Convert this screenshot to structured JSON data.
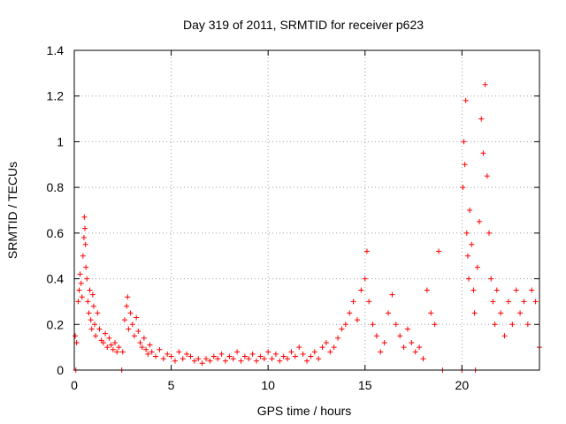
{
  "chart_data": {
    "type": "scatter",
    "title": "Day 319 of 2011, SRMTID for receiver p623",
    "xlabel": "GPS time / hours",
    "ylabel": "SRMTID / TECUs",
    "xlim": [
      0,
      24
    ],
    "ylim": [
      0,
      1.4
    ],
    "x_ticks": [
      0,
      5,
      10,
      15,
      20
    ],
    "y_ticks": [
      0,
      0.2,
      0.4,
      0.6,
      0.8,
      1,
      1.2,
      1.4
    ],
    "x_tick_labels": [
      "0",
      "5",
      "10",
      "15",
      "20"
    ],
    "y_tick_labels": [
      "0",
      "0.2",
      "0.4",
      "0.6",
      "0.8",
      "1",
      "1.2",
      "1.4"
    ],
    "grid": true,
    "marker": "+",
    "colors": {
      "points": "#ff0000",
      "grid": "#a0a0a0",
      "axes": "#000000"
    },
    "series": [
      {
        "name": "SRMTID",
        "points": [
          [
            0.05,
            0.15
          ],
          [
            0.08,
            0.0
          ],
          [
            0.12,
            0.12
          ],
          [
            0.2,
            0.3
          ],
          [
            0.25,
            0.35
          ],
          [
            0.3,
            0.42
          ],
          [
            0.35,
            0.38
          ],
          [
            0.4,
            0.32
          ],
          [
            0.45,
            0.5
          ],
          [
            0.5,
            0.58
          ],
          [
            0.52,
            0.67
          ],
          [
            0.55,
            0.62
          ],
          [
            0.58,
            0.55
          ],
          [
            0.6,
            0.45
          ],
          [
            0.65,
            0.4
          ],
          [
            0.7,
            0.3
          ],
          [
            0.75,
            0.25
          ],
          [
            0.8,
            0.35
          ],
          [
            0.85,
            0.22
          ],
          [
            0.9,
            0.18
          ],
          [
            0.95,
            0.33
          ],
          [
            1.0,
            0.28
          ],
          [
            1.05,
            0.2
          ],
          [
            1.1,
            0.15
          ],
          [
            1.2,
            0.25
          ],
          [
            1.3,
            0.18
          ],
          [
            1.4,
            0.13
          ],
          [
            1.5,
            0.12
          ],
          [
            1.6,
            0.16
          ],
          [
            1.7,
            0.1
          ],
          [
            1.8,
            0.14
          ],
          [
            1.9,
            0.11
          ],
          [
            2.0,
            0.09
          ],
          [
            2.1,
            0.12
          ],
          [
            2.2,
            0.08
          ],
          [
            2.3,
            0.1
          ],
          [
            2.45,
            0.0
          ],
          [
            2.5,
            0.08
          ],
          [
            2.6,
            0.22
          ],
          [
            2.7,
            0.28
          ],
          [
            2.75,
            0.32
          ],
          [
            2.8,
            0.18
          ],
          [
            2.9,
            0.25
          ],
          [
            3.0,
            0.2
          ],
          [
            3.1,
            0.15
          ],
          [
            3.2,
            0.23
          ],
          [
            3.3,
            0.17
          ],
          [
            3.4,
            0.12
          ],
          [
            3.5,
            0.1
          ],
          [
            3.6,
            0.14
          ],
          [
            3.7,
            0.09
          ],
          [
            3.8,
            0.07
          ],
          [
            3.9,
            0.11
          ],
          [
            4.0,
            0.08
          ],
          [
            4.2,
            0.06
          ],
          [
            4.4,
            0.09
          ],
          [
            4.6,
            0.05
          ],
          [
            4.8,
            0.07
          ],
          [
            5.0,
            0.06
          ],
          [
            5.2,
            0.04
          ],
          [
            5.4,
            0.08
          ],
          [
            5.6,
            0.05
          ],
          [
            5.8,
            0.07
          ],
          [
            6.0,
            0.06
          ],
          [
            6.2,
            0.04
          ],
          [
            6.4,
            0.05
          ],
          [
            6.6,
            0.03
          ],
          [
            6.8,
            0.05
          ],
          [
            7.0,
            0.04
          ],
          [
            7.2,
            0.06
          ],
          [
            7.4,
            0.05
          ],
          [
            7.6,
            0.07
          ],
          [
            7.8,
            0.04
          ],
          [
            8.0,
            0.06
          ],
          [
            8.2,
            0.05
          ],
          [
            8.4,
            0.08
          ],
          [
            8.6,
            0.04
          ],
          [
            8.8,
            0.06
          ],
          [
            9.0,
            0.05
          ],
          [
            9.2,
            0.07
          ],
          [
            9.4,
            0.04
          ],
          [
            9.6,
            0.06
          ],
          [
            9.8,
            0.05
          ],
          [
            10.0,
            0.08
          ],
          [
            10.2,
            0.05
          ],
          [
            10.4,
            0.07
          ],
          [
            10.6,
            0.04
          ],
          [
            10.8,
            0.06
          ],
          [
            11.0,
            0.05
          ],
          [
            11.2,
            0.08
          ],
          [
            11.4,
            0.06
          ],
          [
            11.6,
            0.1
          ],
          [
            11.8,
            0.07
          ],
          [
            12.0,
            0.04
          ],
          [
            12.2,
            0.06
          ],
          [
            12.4,
            0.08
          ],
          [
            12.6,
            0.05
          ],
          [
            12.8,
            0.1
          ],
          [
            13.0,
            0.12
          ],
          [
            13.2,
            0.08
          ],
          [
            13.4,
            0.1
          ],
          [
            13.6,
            0.14
          ],
          [
            13.8,
            0.18
          ],
          [
            14.0,
            0.2
          ],
          [
            14.2,
            0.25
          ],
          [
            14.4,
            0.3
          ],
          [
            14.6,
            0.22
          ],
          [
            14.8,
            0.35
          ],
          [
            15.0,
            0.4
          ],
          [
            15.1,
            0.52
          ],
          [
            15.2,
            0.3
          ],
          [
            15.4,
            0.2
          ],
          [
            15.6,
            0.15
          ],
          [
            15.8,
            0.08
          ],
          [
            16.0,
            0.12
          ],
          [
            16.2,
            0.25
          ],
          [
            16.4,
            0.33
          ],
          [
            16.6,
            0.2
          ],
          [
            16.8,
            0.15
          ],
          [
            17.0,
            0.1
          ],
          [
            17.2,
            0.18
          ],
          [
            17.4,
            0.12
          ],
          [
            17.6,
            0.08
          ],
          [
            17.8,
            0.1
          ],
          [
            18.0,
            0.05
          ],
          [
            18.2,
            0.35
          ],
          [
            18.4,
            0.25
          ],
          [
            18.6,
            0.2
          ],
          [
            18.8,
            0.52
          ],
          [
            19.0,
            0.0
          ],
          [
            20.0,
            0.0
          ],
          [
            20.05,
            0.8
          ],
          [
            20.1,
            1.0
          ],
          [
            20.15,
            0.9
          ],
          [
            20.2,
            1.18
          ],
          [
            20.25,
            0.6
          ],
          [
            20.3,
            0.5
          ],
          [
            20.35,
            0.4
          ],
          [
            20.4,
            0.7
          ],
          [
            20.5,
            0.55
          ],
          [
            20.6,
            0.35
          ],
          [
            20.65,
            0.25
          ],
          [
            20.7,
            0.0
          ],
          [
            20.8,
            0.45
          ],
          [
            20.9,
            0.65
          ],
          [
            21.0,
            1.1
          ],
          [
            21.1,
            0.95
          ],
          [
            21.2,
            1.25
          ],
          [
            21.3,
            0.85
          ],
          [
            21.4,
            0.6
          ],
          [
            21.5,
            0.4
          ],
          [
            21.6,
            0.3
          ],
          [
            21.7,
            0.2
          ],
          [
            21.8,
            0.35
          ],
          [
            22.0,
            0.25
          ],
          [
            22.2,
            0.15
          ],
          [
            22.4,
            0.3
          ],
          [
            22.6,
            0.2
          ],
          [
            22.8,
            0.35
          ],
          [
            23.0,
            0.25
          ],
          [
            23.2,
            0.3
          ],
          [
            23.4,
            0.2
          ],
          [
            23.6,
            0.35
          ],
          [
            23.8,
            0.3
          ],
          [
            24.0,
            0.1
          ]
        ]
      }
    ]
  }
}
